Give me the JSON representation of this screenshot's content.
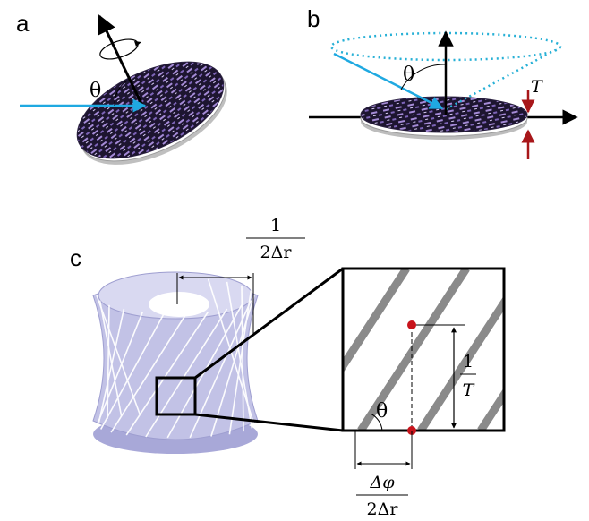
{
  "panels": {
    "a": {
      "letter": "a",
      "angle_label": "θ"
    },
    "b": {
      "letter": "b",
      "angle_label": "θ",
      "thickness_label": "T"
    },
    "c": {
      "letter": "c",
      "period_numerator": "1",
      "period_denominator": "2Δr",
      "angle_label": "θ",
      "height_numerator": "1",
      "height_denominator": "T",
      "offset_numerator": "Δφ",
      "offset_denominator": "2Δr"
    }
  },
  "colors": {
    "beam": "#1fa9e1",
    "cone": "#27b0d6",
    "arrow_red": "#a8171a",
    "marker_red": "#c8141c",
    "stripe_gray": "#8a8a8a",
    "ribbon": "#b9b9e2",
    "disk": "#231a3a"
  }
}
